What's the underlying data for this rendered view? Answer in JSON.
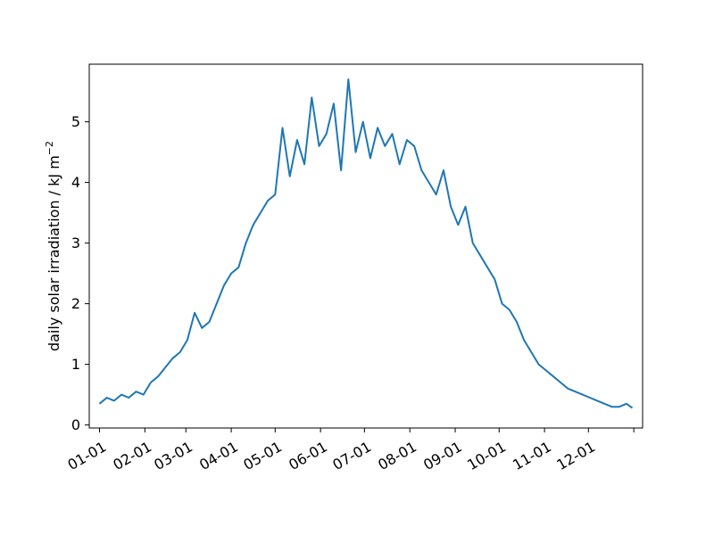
{
  "chart_data": {
    "type": "line",
    "title": "",
    "xlabel": "",
    "ylabel": "daily solar irradiation / kJ m",
    "ylabel_superscript": "−2",
    "x_start_date": "01-01",
    "x_tick_labels": [
      "01-01",
      "02-01",
      "03-01",
      "04-01",
      "05-01",
      "06-01",
      "07-01",
      "08-01",
      "09-01",
      "10-01",
      "11-01",
      "12-01"
    ],
    "y_tick_labels": [
      "0",
      "1",
      "2",
      "3",
      "4",
      "5"
    ],
    "xlim": [
      "12-25",
      "01-07"
    ],
    "ylim": [
      -0.05,
      5.95
    ],
    "grid": false,
    "colors": {
      "line": "#1f77b4",
      "axes": "#000000",
      "background": "#ffffff"
    },
    "series": [
      {
        "x": [
          "01-01",
          "01-06",
          "01-11",
          "01-16",
          "01-21",
          "01-26",
          "01-31",
          "02-05",
          "02-10",
          "02-15",
          "02-20",
          "02-25",
          "03-02",
          "03-07",
          "03-12",
          "03-17",
          "03-22",
          "03-27",
          "04-01",
          "04-06",
          "04-11",
          "04-16",
          "04-21",
          "04-26",
          "05-01",
          "05-06",
          "05-11",
          "05-16",
          "05-21",
          "05-26",
          "05-31",
          "06-05",
          "06-10",
          "06-15",
          "06-20",
          "06-25",
          "06-30",
          "07-05",
          "07-10",
          "07-15",
          "07-20",
          "07-25",
          "07-30",
          "08-04",
          "08-09",
          "08-14",
          "08-19",
          "08-24",
          "08-29",
          "09-03",
          "09-08",
          "09-13",
          "09-18",
          "09-23",
          "09-28",
          "10-03",
          "10-08",
          "10-13",
          "10-18",
          "10-23",
          "10-28",
          "11-02",
          "11-07",
          "11-12",
          "11-17",
          "11-22",
          "11-27",
          "12-02",
          "12-07",
          "12-12",
          "12-17",
          "12-22",
          "12-27",
          "12-31"
        ],
        "y": [
          0.35,
          0.45,
          0.4,
          0.5,
          0.45,
          0.55,
          0.5,
          0.7,
          0.8,
          0.95,
          1.1,
          1.2,
          1.4,
          1.85,
          1.6,
          1.7,
          2.0,
          2.3,
          2.5,
          2.6,
          3.0,
          3.3,
          3.5,
          3.7,
          3.8,
          4.9,
          4.1,
          4.7,
          4.3,
          5.4,
          4.6,
          4.8,
          5.3,
          4.2,
          5.7,
          4.5,
          5.0,
          4.4,
          4.9,
          4.6,
          4.8,
          4.3,
          4.7,
          4.6,
          4.2,
          4.0,
          3.8,
          4.2,
          3.6,
          3.3,
          3.6,
          3.0,
          2.8,
          2.6,
          2.4,
          2.0,
          1.9,
          1.7,
          1.4,
          1.2,
          1.0,
          0.9,
          0.8,
          0.7,
          0.6,
          0.55,
          0.5,
          0.45,
          0.4,
          0.35,
          0.3,
          0.3,
          0.35,
          0.28
        ]
      }
    ]
  }
}
